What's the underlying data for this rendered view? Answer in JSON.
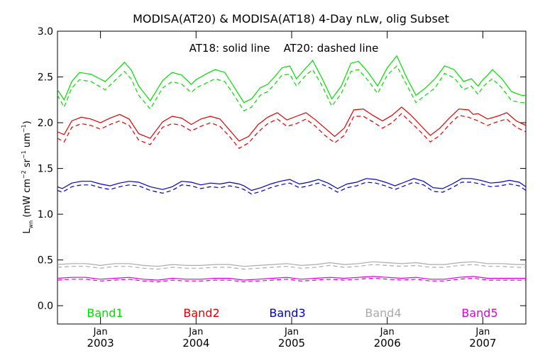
{
  "chart_data": {
    "type": "line",
    "title": "MODISA(AT20) & MODISA(AT18) 4-Day nLw, olig Subset",
    "annotation": "AT18: solid line    AT20: dashed line",
    "ylabel_main": "L",
    "ylabel_sub": "wn",
    "ylabel_units": "(mW cm",
    "ylabel_exp1": "−2",
    "ylabel_mid": " sr",
    "ylabel_exp2": "−1",
    "ylabel_mid2": " um",
    "ylabel_exp3": "−1",
    "ylabel_end": ")",
    "ylim": [
      -0.2,
      3.0
    ],
    "yticks": [
      {
        "v": 0.0,
        "label": "0.0"
      },
      {
        "v": 0.5,
        "label": "0.5"
      },
      {
        "v": 1.0,
        "label": "1.0"
      },
      {
        "v": 1.5,
        "label": "1.5"
      },
      {
        "v": 2.0,
        "label": "2.0"
      },
      {
        "v": 2.5,
        "label": "2.5"
      },
      {
        "v": 3.0,
        "label": "3.0"
      }
    ],
    "xlim": [
      2002.55,
      2007.45
    ],
    "xticks": [
      {
        "v": 2003.0,
        "month": "Jan",
        "year": "2003"
      },
      {
        "v": 2004.0,
        "month": "Jan",
        "year": "2004"
      },
      {
        "v": 2005.0,
        "month": "Jan",
        "year": "2005"
      },
      {
        "v": 2006.0,
        "month": "Jan",
        "year": "2006"
      },
      {
        "v": 2007.0,
        "month": "Jan",
        "year": "2007"
      }
    ],
    "grid": false,
    "legend_position": "bottom",
    "series": [
      {
        "name": "Band1",
        "color": "#00dd00",
        "x": [
          2002.55,
          2002.62,
          2002.7,
          2002.78,
          2002.9,
          2003.05,
          2003.15,
          2003.25,
          2003.32,
          2003.4,
          2003.52,
          2003.65,
          2003.75,
          2003.85,
          2003.95,
          2004.0,
          2004.1,
          2004.2,
          2004.3,
          2004.38,
          2004.5,
          2004.58,
          2004.67,
          2004.75,
          2004.82,
          2004.9,
          2004.98,
          2005.05,
          2005.15,
          2005.22,
          2005.32,
          2005.42,
          2005.52,
          2005.62,
          2005.7,
          2005.8,
          2005.9,
          2006.0,
          2006.1,
          2006.2,
          2006.3,
          2006.4,
          2006.5,
          2006.6,
          2006.7,
          2006.8,
          2006.88,
          2006.95,
          2007.0,
          2007.05,
          2007.1,
          2007.2,
          2007.3,
          2007.4,
          2007.45
        ],
        "solid": [
          2.36,
          2.25,
          2.45,
          2.55,
          2.53,
          2.45,
          2.55,
          2.66,
          2.58,
          2.4,
          2.24,
          2.46,
          2.55,
          2.52,
          2.42,
          2.47,
          2.53,
          2.58,
          2.55,
          2.42,
          2.22,
          2.26,
          2.38,
          2.42,
          2.5,
          2.6,
          2.62,
          2.48,
          2.6,
          2.68,
          2.48,
          2.26,
          2.4,
          2.65,
          2.67,
          2.55,
          2.4,
          2.6,
          2.73,
          2.5,
          2.3,
          2.38,
          2.48,
          2.62,
          2.58,
          2.45,
          2.48,
          2.4,
          2.47,
          2.52,
          2.58,
          2.48,
          2.34,
          2.3,
          2.3
        ],
        "dashed": [
          2.3,
          2.17,
          2.38,
          2.47,
          2.45,
          2.36,
          2.46,
          2.56,
          2.48,
          2.3,
          2.15,
          2.38,
          2.45,
          2.42,
          2.33,
          2.38,
          2.43,
          2.48,
          2.45,
          2.33,
          2.13,
          2.17,
          2.3,
          2.34,
          2.42,
          2.52,
          2.53,
          2.4,
          2.52,
          2.58,
          2.4,
          2.18,
          2.32,
          2.56,
          2.58,
          2.46,
          2.32,
          2.52,
          2.62,
          2.42,
          2.22,
          2.3,
          2.38,
          2.54,
          2.49,
          2.36,
          2.4,
          2.31,
          2.39,
          2.44,
          2.48,
          2.38,
          2.24,
          2.22,
          2.22
        ]
      },
      {
        "name": "Band2",
        "color": "#dd0000",
        "x": [
          2002.55,
          2002.62,
          2002.7,
          2002.8,
          2002.9,
          2003.0,
          2003.1,
          2003.2,
          2003.3,
          2003.4,
          2003.52,
          2003.65,
          2003.75,
          2003.85,
          2003.95,
          2004.05,
          2004.15,
          2004.25,
          2004.35,
          2004.45,
          2004.55,
          2004.65,
          2004.75,
          2004.85,
          2004.95,
          2005.05,
          2005.15,
          2005.25,
          2005.35,
          2005.45,
          2005.55,
          2005.65,
          2005.75,
          2005.85,
          2005.95,
          2006.05,
          2006.15,
          2006.25,
          2006.35,
          2006.45,
          2006.55,
          2006.65,
          2006.75,
          2006.85,
          2006.9,
          2006.95,
          2007.05,
          2007.15,
          2007.25,
          2007.35,
          2007.45
        ],
        "solid": [
          1.9,
          1.87,
          2.02,
          2.06,
          2.04,
          2.0,
          2.05,
          2.09,
          2.04,
          1.88,
          1.83,
          2.01,
          2.07,
          2.05,
          1.98,
          2.04,
          2.07,
          2.04,
          1.92,
          1.8,
          1.85,
          1.98,
          2.06,
          2.11,
          2.03,
          2.07,
          2.11,
          2.03,
          1.94,
          1.85,
          1.94,
          2.14,
          2.15,
          2.08,
          2.02,
          2.08,
          2.17,
          2.08,
          1.97,
          1.86,
          1.94,
          2.05,
          2.15,
          2.14,
          2.09,
          2.1,
          2.04,
          2.07,
          2.11,
          2.02,
          1.97
        ],
        "dashed": [
          1.83,
          1.79,
          1.95,
          1.99,
          1.97,
          1.93,
          1.98,
          2.02,
          1.97,
          1.81,
          1.76,
          1.95,
          1.99,
          1.97,
          1.91,
          1.96,
          2.0,
          1.96,
          1.85,
          1.72,
          1.78,
          1.9,
          1.99,
          2.04,
          1.96,
          1.99,
          2.04,
          1.96,
          1.86,
          1.78,
          1.86,
          2.07,
          2.07,
          2.01,
          1.94,
          2.0,
          2.1,
          2.0,
          1.9,
          1.79,
          1.86,
          1.98,
          2.08,
          2.06,
          2.04,
          2.02,
          1.97,
          2.01,
          2.04,
          1.95,
          1.9
        ]
      },
      {
        "name": "Band3",
        "color": "#0000cc",
        "x": [
          2002.55,
          2002.6,
          2002.7,
          2002.8,
          2002.9,
          2003.0,
          2003.1,
          2003.2,
          2003.3,
          2003.4,
          2003.52,
          2003.65,
          2003.75,
          2003.85,
          2003.95,
          2004.05,
          2004.15,
          2004.25,
          2004.35,
          2004.45,
          2004.5,
          2004.58,
          2004.68,
          2004.78,
          2004.88,
          2004.98,
          2005.08,
          2005.18,
          2005.28,
          2005.38,
          2005.48,
          2005.58,
          2005.68,
          2005.78,
          2005.88,
          2005.98,
          2006.08,
          2006.18,
          2006.28,
          2006.38,
          2006.48,
          2006.58,
          2006.68,
          2006.78,
          2006.88,
          2006.98,
          2007.08,
          2007.18,
          2007.28,
          2007.38,
          2007.45
        ],
        "solid": [
          1.3,
          1.28,
          1.34,
          1.36,
          1.36,
          1.33,
          1.31,
          1.34,
          1.36,
          1.35,
          1.3,
          1.27,
          1.3,
          1.36,
          1.35,
          1.32,
          1.34,
          1.33,
          1.35,
          1.33,
          1.31,
          1.26,
          1.29,
          1.33,
          1.36,
          1.38,
          1.33,
          1.35,
          1.38,
          1.34,
          1.28,
          1.33,
          1.35,
          1.39,
          1.38,
          1.35,
          1.31,
          1.35,
          1.39,
          1.36,
          1.29,
          1.28,
          1.33,
          1.39,
          1.39,
          1.37,
          1.34,
          1.35,
          1.37,
          1.35,
          1.3
        ],
        "dashed": [
          1.26,
          1.24,
          1.3,
          1.32,
          1.32,
          1.29,
          1.27,
          1.3,
          1.32,
          1.31,
          1.26,
          1.23,
          1.26,
          1.32,
          1.31,
          1.28,
          1.3,
          1.29,
          1.31,
          1.29,
          1.27,
          1.22,
          1.25,
          1.29,
          1.32,
          1.34,
          1.29,
          1.31,
          1.34,
          1.3,
          1.24,
          1.29,
          1.31,
          1.35,
          1.34,
          1.31,
          1.27,
          1.31,
          1.35,
          1.32,
          1.25,
          1.24,
          1.29,
          1.35,
          1.35,
          1.33,
          1.3,
          1.31,
          1.33,
          1.31,
          1.26
        ]
      },
      {
        "name": "Band4",
        "color": "#aaaaaa",
        "x": [
          2002.55,
          2002.7,
          2002.85,
          2003.0,
          2003.15,
          2003.3,
          2003.45,
          2003.6,
          2003.75,
          2003.9,
          2004.05,
          2004.2,
          2004.35,
          2004.5,
          2004.65,
          2004.8,
          2004.95,
          2005.1,
          2005.25,
          2005.4,
          2005.55,
          2005.7,
          2005.85,
          2006.0,
          2006.15,
          2006.3,
          2006.45,
          2006.6,
          2006.75,
          2006.9,
          2007.05,
          2007.2,
          2007.35,
          2007.45
        ],
        "solid": [
          0.45,
          0.46,
          0.46,
          0.44,
          0.46,
          0.46,
          0.44,
          0.43,
          0.45,
          0.44,
          0.44,
          0.45,
          0.45,
          0.43,
          0.44,
          0.45,
          0.46,
          0.44,
          0.45,
          0.47,
          0.45,
          0.46,
          0.48,
          0.47,
          0.46,
          0.47,
          0.45,
          0.45,
          0.47,
          0.48,
          0.46,
          0.46,
          0.45,
          0.45
        ],
        "dashed": [
          0.42,
          0.43,
          0.43,
          0.41,
          0.43,
          0.43,
          0.41,
          0.4,
          0.42,
          0.41,
          0.41,
          0.42,
          0.42,
          0.4,
          0.41,
          0.42,
          0.43,
          0.41,
          0.42,
          0.44,
          0.42,
          0.43,
          0.45,
          0.44,
          0.43,
          0.44,
          0.42,
          0.42,
          0.44,
          0.45,
          0.43,
          0.43,
          0.42,
          0.42
        ]
      },
      {
        "name": "Band5",
        "color": "#dd00dd",
        "x": [
          2002.55,
          2002.7,
          2002.85,
          2003.0,
          2003.15,
          2003.3,
          2003.45,
          2003.6,
          2003.75,
          2003.9,
          2004.05,
          2004.2,
          2004.35,
          2004.5,
          2004.65,
          2004.8,
          2004.95,
          2005.1,
          2005.25,
          2005.4,
          2005.55,
          2005.7,
          2005.85,
          2006.0,
          2006.15,
          2006.3,
          2006.45,
          2006.6,
          2006.75,
          2006.9,
          2007.05,
          2007.2,
          2007.35,
          2007.45
        ],
        "solid": [
          0.3,
          0.31,
          0.31,
          0.29,
          0.3,
          0.31,
          0.29,
          0.28,
          0.3,
          0.29,
          0.29,
          0.3,
          0.3,
          0.28,
          0.29,
          0.3,
          0.31,
          0.29,
          0.3,
          0.31,
          0.3,
          0.31,
          0.32,
          0.31,
          0.3,
          0.31,
          0.29,
          0.29,
          0.31,
          0.32,
          0.3,
          0.3,
          0.3,
          0.3
        ],
        "dashed": [
          0.28,
          0.29,
          0.29,
          0.27,
          0.28,
          0.29,
          0.27,
          0.26,
          0.28,
          0.27,
          0.27,
          0.28,
          0.28,
          0.26,
          0.27,
          0.28,
          0.29,
          0.27,
          0.28,
          0.29,
          0.28,
          0.29,
          0.3,
          0.29,
          0.28,
          0.29,
          0.27,
          0.27,
          0.29,
          0.3,
          0.28,
          0.28,
          0.28,
          0.28
        ]
      }
    ]
  }
}
